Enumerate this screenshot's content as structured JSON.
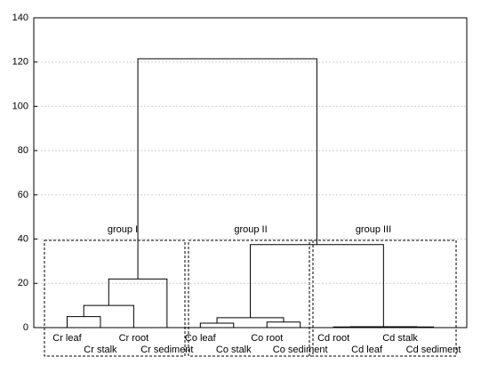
{
  "chart_data": {
    "type": "dendrogram",
    "leaves": [
      "Cr leaf",
      "Cr stalk",
      "Cr root",
      "Cr sediment",
      "Co leaf",
      "Co stalk",
      "Co root",
      "Co sediment",
      "Cd root",
      "Cd leaf",
      "Cd stalk",
      "Cd sediment"
    ],
    "merges": [
      {
        "left": 0,
        "right": 1,
        "height": 5
      },
      {
        "left": 12,
        "right": 2,
        "height": 10
      },
      {
        "left": 13,
        "right": 3,
        "height": 22
      },
      {
        "left": 4,
        "right": 5,
        "height": 2
      },
      {
        "left": 6,
        "right": 7,
        "height": 2.5
      },
      {
        "left": 15,
        "right": 16,
        "height": 4.5
      },
      {
        "left": 8,
        "right": 9,
        "height": 0.3
      },
      {
        "left": 10,
        "right": 11,
        "height": 0.3
      },
      {
        "left": 18,
        "right": 19,
        "height": 0.4
      },
      {
        "left": 17,
        "right": 20,
        "height": 37.5
      },
      {
        "left": 14,
        "right": 21,
        "height": 121.5
      }
    ],
    "ylim": [
      0,
      140
    ],
    "yticks": [
      0,
      20,
      40,
      60,
      80,
      100,
      120,
      140
    ],
    "grid": true,
    "annotations": [
      "group I",
      "group II",
      "group III"
    ]
  }
}
